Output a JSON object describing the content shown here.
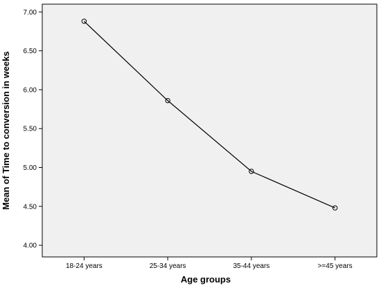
{
  "chart_data": {
    "type": "line",
    "title": "",
    "xlabel": "Age groups",
    "ylabel": "Mean of Time to conversion in weeks",
    "categories": [
      "18-24 years",
      "25-34 years",
      "35-44 years",
      ">=45 years"
    ],
    "series": [
      {
        "values": [
          6.88,
          5.86,
          4.95,
          4.48
        ]
      }
    ],
    "ylim": [
      3.85,
      7.1
    ],
    "yticks": [
      "4.00",
      "4.50",
      "5.00",
      "5.50",
      "6.00",
      "6.50",
      "7.00"
    ],
    "grid": false,
    "legend": "none",
    "plot_background": "#f0f0f0",
    "line_color": "#000000",
    "marker": "open-circle"
  }
}
